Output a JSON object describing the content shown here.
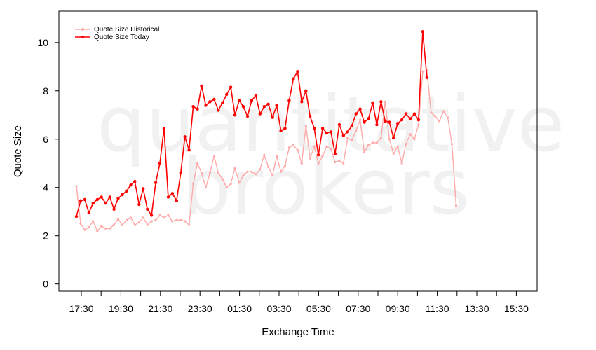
{
  "watermark": {
    "line1": "quantitative",
    "line2": "brokers"
  },
  "chart_data": {
    "type": "line",
    "xlabel": "Exchange Time",
    "ylabel": "Quote Size",
    "x_tick_labels": [
      "17:30",
      "19:30",
      "21:30",
      "23:30",
      "01:30",
      "03:30",
      "05:30",
      "07:30",
      "09:30",
      "11:30",
      "13:30",
      "15:30"
    ],
    "y_ticks": [
      0,
      2,
      4,
      6,
      8,
      10
    ],
    "ylim": [
      -0.3,
      11.3
    ],
    "grid": false,
    "legend_position": "top-left",
    "series": [
      {
        "name": "Quote Size Historical",
        "color": "#ffaaaa",
        "values": [
          4.05,
          2.5,
          2.25,
          2.35,
          2.6,
          2.2,
          2.4,
          2.3,
          2.3,
          2.45,
          2.7,
          2.45,
          2.65,
          2.75,
          2.45,
          2.55,
          2.75,
          2.45,
          2.6,
          2.65,
          2.85,
          2.75,
          2.85,
          2.6,
          2.65,
          2.65,
          2.6,
          2.45,
          4.15,
          5.0,
          4.6,
          4.0,
          4.6,
          5.3,
          4.6,
          4.35,
          4.0,
          4.15,
          4.8,
          4.2,
          4.5,
          4.65,
          4.65,
          4.55,
          4.75,
          5.35,
          4.85,
          4.5,
          5.3,
          4.65,
          4.9,
          5.65,
          5.75,
          5.55,
          5.0,
          6.55,
          5.2,
          5.7,
          5.0,
          5.3,
          5.7,
          5.6,
          5.05,
          5.1,
          5.0,
          6.05,
          5.95,
          6.35,
          6.8,
          5.45,
          5.75,
          5.85,
          5.85,
          6.05,
          7.55,
          6.0,
          5.4,
          5.7,
          5.0,
          5.8,
          6.2,
          6.0,
          6.6,
          8.8,
          8.85,
          7.1,
          6.95,
          6.75,
          7.15,
          6.9,
          5.8,
          3.25
        ]
      },
      {
        "name": "Quote Size Today",
        "color": "#ff0000",
        "values": [
          2.8,
          3.45,
          3.5,
          2.95,
          3.35,
          3.5,
          3.6,
          3.35,
          3.6,
          3.1,
          3.55,
          3.7,
          3.85,
          4.1,
          4.25,
          3.3,
          3.95,
          3.1,
          2.85,
          4.2,
          5.0,
          6.45,
          3.6,
          3.75,
          3.45,
          4.6,
          6.1,
          5.55,
          7.35,
          7.25,
          8.2,
          7.4,
          7.55,
          7.65,
          7.2,
          7.5,
          7.85,
          8.15,
          7.0,
          7.6,
          7.35,
          6.95,
          7.6,
          7.8,
          7.05,
          7.35,
          7.45,
          6.9,
          7.4,
          6.35,
          6.45,
          7.6,
          8.5,
          8.8,
          7.55,
          8.0,
          6.95,
          6.45,
          5.35,
          6.45,
          6.25,
          6.3,
          5.4,
          6.6,
          6.15,
          6.3,
          6.55,
          7.05,
          7.25,
          6.7,
          6.85,
          7.5,
          6.6,
          7.55,
          6.75,
          6.7,
          6.05,
          6.65,
          6.8,
          7.05,
          6.85,
          7.05,
          6.8,
          10.45,
          8.55
        ]
      }
    ]
  }
}
